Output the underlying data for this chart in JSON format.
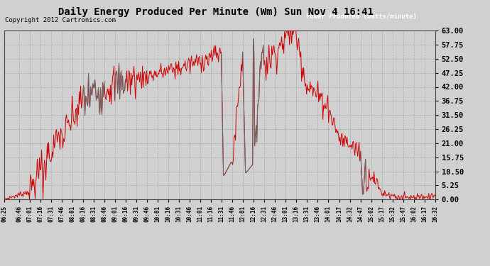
{
  "title": "Daily Energy Produced Per Minute (Wm) Sun Nov 4 16:41",
  "copyright": "Copyright 2012 Cartronics.com",
  "legend_label": "Power Produced (watts/minute)",
  "bg_color": "#d0d0d0",
  "plot_bg_color": "#d0d0d0",
  "line_color": "#cc0000",
  "gray_color": "#666666",
  "legend_bg": "#cc0000",
  "legend_text_color": "#ffffff",
  "ymin": 0.0,
  "ymax": 63.0,
  "yticks": [
    0.0,
    5.25,
    10.5,
    15.75,
    21.0,
    26.25,
    31.5,
    36.75,
    42.0,
    47.25,
    52.5,
    57.75,
    63.0
  ],
  "xtick_labels": [
    "06:25",
    "06:46",
    "07:01",
    "07:16",
    "07:31",
    "07:46",
    "08:01",
    "08:16",
    "08:31",
    "08:46",
    "09:01",
    "09:16",
    "09:31",
    "09:46",
    "10:01",
    "10:16",
    "10:31",
    "10:46",
    "11:01",
    "11:16",
    "11:31",
    "11:46",
    "12:01",
    "12:16",
    "12:31",
    "12:46",
    "13:01",
    "13:16",
    "13:31",
    "13:46",
    "14:01",
    "14:17",
    "14:32",
    "14:47",
    "15:02",
    "15:17",
    "15:32",
    "15:47",
    "16:02",
    "16:17",
    "16:32"
  ]
}
